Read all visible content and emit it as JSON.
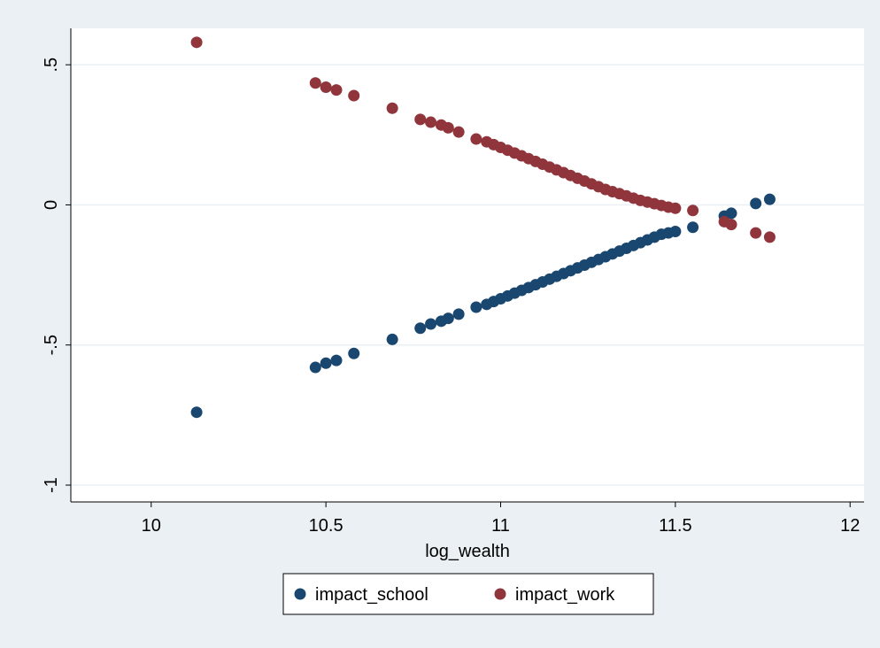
{
  "chart_data": {
    "type": "scatter",
    "title": "",
    "xlabel": "log_wealth",
    "ylabel": "",
    "xlim": [
      9.77,
      12.04
    ],
    "ylim": [
      -1.06,
      0.63
    ],
    "x_ticks": [
      {
        "value": 10,
        "label": "10"
      },
      {
        "value": 10.5,
        "label": "10.5"
      },
      {
        "value": 11,
        "label": "11"
      },
      {
        "value": 11.5,
        "label": "11.5"
      },
      {
        "value": 12,
        "label": "12"
      }
    ],
    "y_ticks": [
      {
        "value": -1,
        "label": "-1"
      },
      {
        "value": -0.5,
        "label": "-.5"
      },
      {
        "value": 0,
        "label": "0"
      },
      {
        "value": 0.5,
        "label": ".5"
      }
    ],
    "grid": true,
    "legend": "bottom",
    "series": [
      {
        "name": "impact_school",
        "color": "#1a476f",
        "points": [
          [
            10.13,
            -0.74
          ],
          [
            10.47,
            -0.58
          ],
          [
            10.5,
            -0.565
          ],
          [
            10.53,
            -0.555
          ],
          [
            10.58,
            -0.53
          ],
          [
            10.69,
            -0.48
          ],
          [
            10.77,
            -0.44
          ],
          [
            10.8,
            -0.425
          ],
          [
            10.83,
            -0.415
          ],
          [
            10.85,
            -0.405
          ],
          [
            10.88,
            -0.39
          ],
          [
            10.93,
            -0.365
          ],
          [
            10.96,
            -0.355
          ],
          [
            10.98,
            -0.345
          ],
          [
            11.0,
            -0.335
          ],
          [
            11.02,
            -0.325
          ],
          [
            11.04,
            -0.315
          ],
          [
            11.06,
            -0.305
          ],
          [
            11.08,
            -0.295
          ],
          [
            11.1,
            -0.285
          ],
          [
            11.12,
            -0.275
          ],
          [
            11.14,
            -0.265
          ],
          [
            11.16,
            -0.255
          ],
          [
            11.18,
            -0.245
          ],
          [
            11.2,
            -0.235
          ],
          [
            11.22,
            -0.225
          ],
          [
            11.24,
            -0.215
          ],
          [
            11.26,
            -0.205
          ],
          [
            11.28,
            -0.195
          ],
          [
            11.3,
            -0.185
          ],
          [
            11.32,
            -0.175
          ],
          [
            11.34,
            -0.165
          ],
          [
            11.36,
            -0.155
          ],
          [
            11.38,
            -0.145
          ],
          [
            11.4,
            -0.135
          ],
          [
            11.42,
            -0.125
          ],
          [
            11.44,
            -0.115
          ],
          [
            11.46,
            -0.105
          ],
          [
            11.48,
            -0.1
          ],
          [
            11.5,
            -0.095
          ],
          [
            11.55,
            -0.08
          ],
          [
            11.64,
            -0.04
          ],
          [
            11.66,
            -0.03
          ],
          [
            11.73,
            0.005
          ],
          [
            11.77,
            0.02
          ]
        ]
      },
      {
        "name": "impact_work",
        "color": "#90353b",
        "points": [
          [
            10.13,
            0.58
          ],
          [
            10.47,
            0.435
          ],
          [
            10.5,
            0.42
          ],
          [
            10.53,
            0.41
          ],
          [
            10.58,
            0.39
          ],
          [
            10.69,
            0.345
          ],
          [
            10.77,
            0.305
          ],
          [
            10.8,
            0.295
          ],
          [
            10.83,
            0.285
          ],
          [
            10.85,
            0.275
          ],
          [
            10.88,
            0.26
          ],
          [
            10.93,
            0.235
          ],
          [
            10.96,
            0.225
          ],
          [
            10.98,
            0.215
          ],
          [
            11.0,
            0.205
          ],
          [
            11.02,
            0.195
          ],
          [
            11.04,
            0.185
          ],
          [
            11.06,
            0.175
          ],
          [
            11.08,
            0.165
          ],
          [
            11.1,
            0.155
          ],
          [
            11.12,
            0.145
          ],
          [
            11.14,
            0.135
          ],
          [
            11.16,
            0.125
          ],
          [
            11.18,
            0.115
          ],
          [
            11.2,
            0.105
          ],
          [
            11.22,
            0.095
          ],
          [
            11.24,
            0.085
          ],
          [
            11.26,
            0.075
          ],
          [
            11.28,
            0.065
          ],
          [
            11.3,
            0.055
          ],
          [
            11.32,
            0.047
          ],
          [
            11.34,
            0.04
          ],
          [
            11.36,
            0.032
          ],
          [
            11.38,
            0.024
          ],
          [
            11.4,
            0.016
          ],
          [
            11.42,
            0.01
          ],
          [
            11.44,
            0.004
          ],
          [
            11.46,
            -0.002
          ],
          [
            11.48,
            -0.008
          ],
          [
            11.5,
            -0.012
          ],
          [
            11.55,
            -0.02
          ],
          [
            11.64,
            -0.06
          ],
          [
            11.66,
            -0.07
          ],
          [
            11.73,
            -0.1
          ],
          [
            11.77,
            -0.115
          ]
        ]
      }
    ]
  }
}
